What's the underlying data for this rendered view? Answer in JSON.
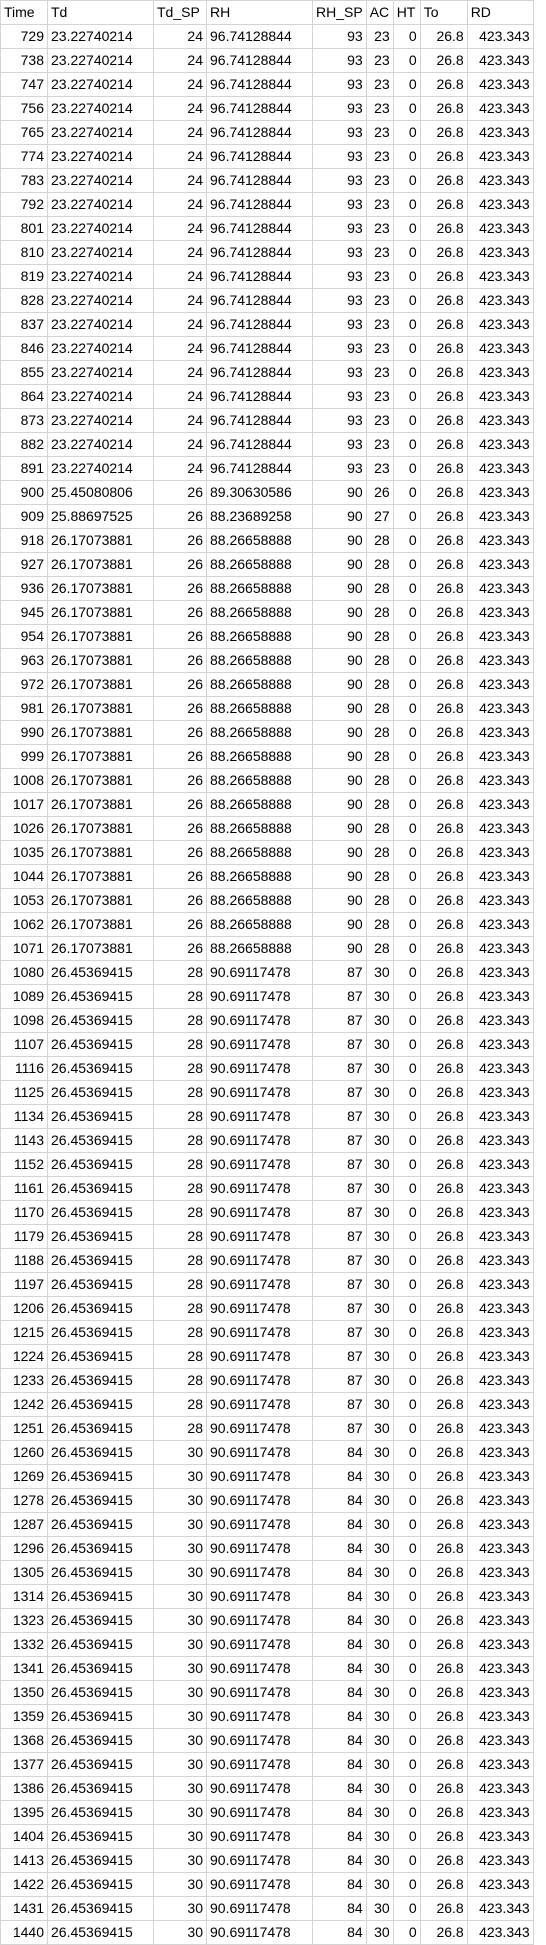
{
  "columns": [
    "Time",
    "Td",
    "Td_SP",
    "RH",
    "RH_SP",
    "AC",
    "HT",
    "To",
    "RD"
  ],
  "rows": [
    [
      "729",
      "23.22740214",
      "24",
      "96.74128844",
      "93",
      "23",
      "0",
      "26.8",
      "423.343"
    ],
    [
      "738",
      "23.22740214",
      "24",
      "96.74128844",
      "93",
      "23",
      "0",
      "26.8",
      "423.343"
    ],
    [
      "747",
      "23.22740214",
      "24",
      "96.74128844",
      "93",
      "23",
      "0",
      "26.8",
      "423.343"
    ],
    [
      "756",
      "23.22740214",
      "24",
      "96.74128844",
      "93",
      "23",
      "0",
      "26.8",
      "423.343"
    ],
    [
      "765",
      "23.22740214",
      "24",
      "96.74128844",
      "93",
      "23",
      "0",
      "26.8",
      "423.343"
    ],
    [
      "774",
      "23.22740214",
      "24",
      "96.74128844",
      "93",
      "23",
      "0",
      "26.8",
      "423.343"
    ],
    [
      "783",
      "23.22740214",
      "24",
      "96.74128844",
      "93",
      "23",
      "0",
      "26.8",
      "423.343"
    ],
    [
      "792",
      "23.22740214",
      "24",
      "96.74128844",
      "93",
      "23",
      "0",
      "26.8",
      "423.343"
    ],
    [
      "801",
      "23.22740214",
      "24",
      "96.74128844",
      "93",
      "23",
      "0",
      "26.8",
      "423.343"
    ],
    [
      "810",
      "23.22740214",
      "24",
      "96.74128844",
      "93",
      "23",
      "0",
      "26.8",
      "423.343"
    ],
    [
      "819",
      "23.22740214",
      "24",
      "96.74128844",
      "93",
      "23",
      "0",
      "26.8",
      "423.343"
    ],
    [
      "828",
      "23.22740214",
      "24",
      "96.74128844",
      "93",
      "23",
      "0",
      "26.8",
      "423.343"
    ],
    [
      "837",
      "23.22740214",
      "24",
      "96.74128844",
      "93",
      "23",
      "0",
      "26.8",
      "423.343"
    ],
    [
      "846",
      "23.22740214",
      "24",
      "96.74128844",
      "93",
      "23",
      "0",
      "26.8",
      "423.343"
    ],
    [
      "855",
      "23.22740214",
      "24",
      "96.74128844",
      "93",
      "23",
      "0",
      "26.8",
      "423.343"
    ],
    [
      "864",
      "23.22740214",
      "24",
      "96.74128844",
      "93",
      "23",
      "0",
      "26.8",
      "423.343"
    ],
    [
      "873",
      "23.22740214",
      "24",
      "96.74128844",
      "93",
      "23",
      "0",
      "26.8",
      "423.343"
    ],
    [
      "882",
      "23.22740214",
      "24",
      "96.74128844",
      "93",
      "23",
      "0",
      "26.8",
      "423.343"
    ],
    [
      "891",
      "23.22740214",
      "24",
      "96.74128844",
      "93",
      "23",
      "0",
      "26.8",
      "423.343"
    ],
    [
      "900",
      "25.45080806",
      "26",
      "89.30630586",
      "90",
      "26",
      "0",
      "26.8",
      "423.343"
    ],
    [
      "909",
      "25.88697525",
      "26",
      "88.23689258",
      "90",
      "27",
      "0",
      "26.8",
      "423.343"
    ],
    [
      "918",
      "26.17073881",
      "26",
      "88.26658888",
      "90",
      "28",
      "0",
      "26.8",
      "423.343"
    ],
    [
      "927",
      "26.17073881",
      "26",
      "88.26658888",
      "90",
      "28",
      "0",
      "26.8",
      "423.343"
    ],
    [
      "936",
      "26.17073881",
      "26",
      "88.26658888",
      "90",
      "28",
      "0",
      "26.8",
      "423.343"
    ],
    [
      "945",
      "26.17073881",
      "26",
      "88.26658888",
      "90",
      "28",
      "0",
      "26.8",
      "423.343"
    ],
    [
      "954",
      "26.17073881",
      "26",
      "88.26658888",
      "90",
      "28",
      "0",
      "26.8",
      "423.343"
    ],
    [
      "963",
      "26.17073881",
      "26",
      "88.26658888",
      "90",
      "28",
      "0",
      "26.8",
      "423.343"
    ],
    [
      "972",
      "26.17073881",
      "26",
      "88.26658888",
      "90",
      "28",
      "0",
      "26.8",
      "423.343"
    ],
    [
      "981",
      "26.17073881",
      "26",
      "88.26658888",
      "90",
      "28",
      "0",
      "26.8",
      "423.343"
    ],
    [
      "990",
      "26.17073881",
      "26",
      "88.26658888",
      "90",
      "28",
      "0",
      "26.8",
      "423.343"
    ],
    [
      "999",
      "26.17073881",
      "26",
      "88.26658888",
      "90",
      "28",
      "0",
      "26.8",
      "423.343"
    ],
    [
      "1008",
      "26.17073881",
      "26",
      "88.26658888",
      "90",
      "28",
      "0",
      "26.8",
      "423.343"
    ],
    [
      "1017",
      "26.17073881",
      "26",
      "88.26658888",
      "90",
      "28",
      "0",
      "26.8",
      "423.343"
    ],
    [
      "1026",
      "26.17073881",
      "26",
      "88.26658888",
      "90",
      "28",
      "0",
      "26.8",
      "423.343"
    ],
    [
      "1035",
      "26.17073881",
      "26",
      "88.26658888",
      "90",
      "28",
      "0",
      "26.8",
      "423.343"
    ],
    [
      "1044",
      "26.17073881",
      "26",
      "88.26658888",
      "90",
      "28",
      "0",
      "26.8",
      "423.343"
    ],
    [
      "1053",
      "26.17073881",
      "26",
      "88.26658888",
      "90",
      "28",
      "0",
      "26.8",
      "423.343"
    ],
    [
      "1062",
      "26.17073881",
      "26",
      "88.26658888",
      "90",
      "28",
      "0",
      "26.8",
      "423.343"
    ],
    [
      "1071",
      "26.17073881",
      "26",
      "88.26658888",
      "90",
      "28",
      "0",
      "26.8",
      "423.343"
    ],
    [
      "1080",
      "26.45369415",
      "28",
      "90.69117478",
      "87",
      "30",
      "0",
      "26.8",
      "423.343"
    ],
    [
      "1089",
      "26.45369415",
      "28",
      "90.69117478",
      "87",
      "30",
      "0",
      "26.8",
      "423.343"
    ],
    [
      "1098",
      "26.45369415",
      "28",
      "90.69117478",
      "87",
      "30",
      "0",
      "26.8",
      "423.343"
    ],
    [
      "1107",
      "26.45369415",
      "28",
      "90.69117478",
      "87",
      "30",
      "0",
      "26.8",
      "423.343"
    ],
    [
      "1116",
      "26.45369415",
      "28",
      "90.69117478",
      "87",
      "30",
      "0",
      "26.8",
      "423.343"
    ],
    [
      "1125",
      "26.45369415",
      "28",
      "90.69117478",
      "87",
      "30",
      "0",
      "26.8",
      "423.343"
    ],
    [
      "1134",
      "26.45369415",
      "28",
      "90.69117478",
      "87",
      "30",
      "0",
      "26.8",
      "423.343"
    ],
    [
      "1143",
      "26.45369415",
      "28",
      "90.69117478",
      "87",
      "30",
      "0",
      "26.8",
      "423.343"
    ],
    [
      "1152",
      "26.45369415",
      "28",
      "90.69117478",
      "87",
      "30",
      "0",
      "26.8",
      "423.343"
    ],
    [
      "1161",
      "26.45369415",
      "28",
      "90.69117478",
      "87",
      "30",
      "0",
      "26.8",
      "423.343"
    ],
    [
      "1170",
      "26.45369415",
      "28",
      "90.69117478",
      "87",
      "30",
      "0",
      "26.8",
      "423.343"
    ],
    [
      "1179",
      "26.45369415",
      "28",
      "90.69117478",
      "87",
      "30",
      "0",
      "26.8",
      "423.343"
    ],
    [
      "1188",
      "26.45369415",
      "28",
      "90.69117478",
      "87",
      "30",
      "0",
      "26.8",
      "423.343"
    ],
    [
      "1197",
      "26.45369415",
      "28",
      "90.69117478",
      "87",
      "30",
      "0",
      "26.8",
      "423.343"
    ],
    [
      "1206",
      "26.45369415",
      "28",
      "90.69117478",
      "87",
      "30",
      "0",
      "26.8",
      "423.343"
    ],
    [
      "1215",
      "26.45369415",
      "28",
      "90.69117478",
      "87",
      "30",
      "0",
      "26.8",
      "423.343"
    ],
    [
      "1224",
      "26.45369415",
      "28",
      "90.69117478",
      "87",
      "30",
      "0",
      "26.8",
      "423.343"
    ],
    [
      "1233",
      "26.45369415",
      "28",
      "90.69117478",
      "87",
      "30",
      "0",
      "26.8",
      "423.343"
    ],
    [
      "1242",
      "26.45369415",
      "28",
      "90.69117478",
      "87",
      "30",
      "0",
      "26.8",
      "423.343"
    ],
    [
      "1251",
      "26.45369415",
      "28",
      "90.69117478",
      "87",
      "30",
      "0",
      "26.8",
      "423.343"
    ],
    [
      "1260",
      "26.45369415",
      "30",
      "90.69117478",
      "84",
      "30",
      "0",
      "26.8",
      "423.343"
    ],
    [
      "1269",
      "26.45369415",
      "30",
      "90.69117478",
      "84",
      "30",
      "0",
      "26.8",
      "423.343"
    ],
    [
      "1278",
      "26.45369415",
      "30",
      "90.69117478",
      "84",
      "30",
      "0",
      "26.8",
      "423.343"
    ],
    [
      "1287",
      "26.45369415",
      "30",
      "90.69117478",
      "84",
      "30",
      "0",
      "26.8",
      "423.343"
    ],
    [
      "1296",
      "26.45369415",
      "30",
      "90.69117478",
      "84",
      "30",
      "0",
      "26.8",
      "423.343"
    ],
    [
      "1305",
      "26.45369415",
      "30",
      "90.69117478",
      "84",
      "30",
      "0",
      "26.8",
      "423.343"
    ],
    [
      "1314",
      "26.45369415",
      "30",
      "90.69117478",
      "84",
      "30",
      "0",
      "26.8",
      "423.343"
    ],
    [
      "1323",
      "26.45369415",
      "30",
      "90.69117478",
      "84",
      "30",
      "0",
      "26.8",
      "423.343"
    ],
    [
      "1332",
      "26.45369415",
      "30",
      "90.69117478",
      "84",
      "30",
      "0",
      "26.8",
      "423.343"
    ],
    [
      "1341",
      "26.45369415",
      "30",
      "90.69117478",
      "84",
      "30",
      "0",
      "26.8",
      "423.343"
    ],
    [
      "1350",
      "26.45369415",
      "30",
      "90.69117478",
      "84",
      "30",
      "0",
      "26.8",
      "423.343"
    ],
    [
      "1359",
      "26.45369415",
      "30",
      "90.69117478",
      "84",
      "30",
      "0",
      "26.8",
      "423.343"
    ],
    [
      "1368",
      "26.45369415",
      "30",
      "90.69117478",
      "84",
      "30",
      "0",
      "26.8",
      "423.343"
    ],
    [
      "1377",
      "26.45369415",
      "30",
      "90.69117478",
      "84",
      "30",
      "0",
      "26.8",
      "423.343"
    ],
    [
      "1386",
      "26.45369415",
      "30",
      "90.69117478",
      "84",
      "30",
      "0",
      "26.8",
      "423.343"
    ],
    [
      "1395",
      "26.45369415",
      "30",
      "90.69117478",
      "84",
      "30",
      "0",
      "26.8",
      "423.343"
    ],
    [
      "1404",
      "26.45369415",
      "30",
      "90.69117478",
      "84",
      "30",
      "0",
      "26.8",
      "423.343"
    ],
    [
      "1413",
      "26.45369415",
      "30",
      "90.69117478",
      "84",
      "30",
      "0",
      "26.8",
      "423.343"
    ],
    [
      "1422",
      "26.45369415",
      "30",
      "90.69117478",
      "84",
      "30",
      "0",
      "26.8",
      "423.343"
    ],
    [
      "1431",
      "26.45369415",
      "30",
      "90.69117478",
      "84",
      "30",
      "0",
      "26.8",
      "423.343"
    ],
    [
      "1440",
      "26.45369415",
      "30",
      "90.69117478",
      "84",
      "30",
      "0",
      "26.8",
      "423.343"
    ]
  ]
}
